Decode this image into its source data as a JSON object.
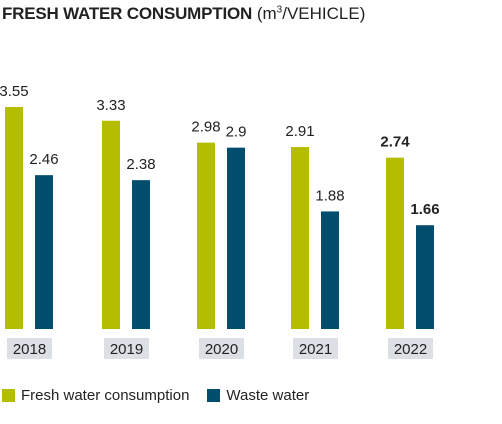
{
  "title": {
    "main": "FRESH WATER CONSUMPTION",
    "unit_prefix": "(m",
    "unit_sup": "3",
    "unit_suffix": "/VEHICLE)"
  },
  "colors": {
    "fresh": "#b5bd00",
    "waste": "#004d6e",
    "year_box": "#dcdfe3"
  },
  "chart_data": {
    "type": "bar",
    "title": "FRESH WATER CONSUMPTION (m3/VEHICLE)",
    "categories": [
      "2018",
      "2019",
      "2020",
      "2021",
      "2022"
    ],
    "series": [
      {
        "name": "Fresh water consumption",
        "values": [
          3.55,
          3.33,
          2.98,
          2.91,
          2.74
        ]
      },
      {
        "name": "Waste water",
        "values": [
          2.46,
          2.38,
          2.9,
          1.88,
          1.66
        ]
      }
    ],
    "value_labels": {
      "fresh": [
        "3.55",
        "3.33",
        "2.98",
        "2.91",
        "2.74"
      ],
      "waste": [
        "2.46",
        "2.38",
        "2.9",
        "1.88",
        "1.66"
      ]
    },
    "bold_category": "2022",
    "ylim": [
      0,
      3.55
    ],
    "grid": false,
    "legend_position": "bottom-left"
  }
}
